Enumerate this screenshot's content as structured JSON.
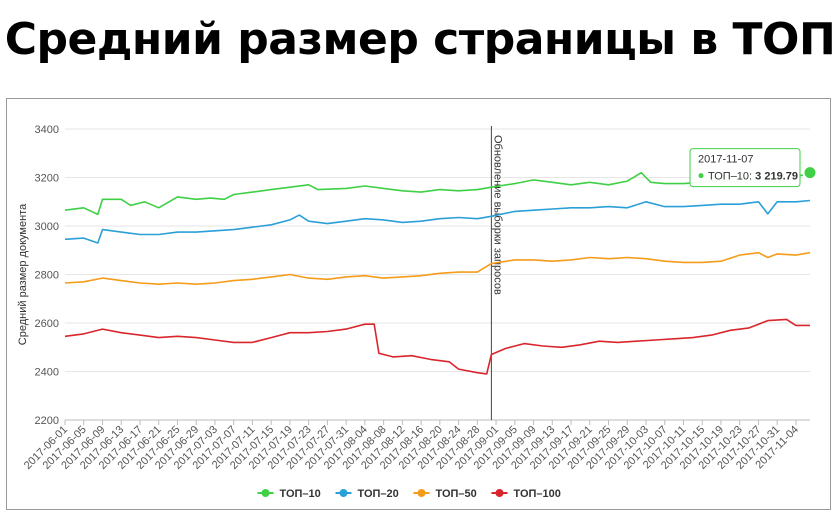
{
  "title": "Средний размер страницы в ТОП",
  "chart_data": {
    "type": "line",
    "ylabel": "Средний размер документа",
    "ylim": [
      2200,
      3400
    ],
    "yticks": [
      2200,
      2400,
      2600,
      2800,
      3000,
      3200,
      3400
    ],
    "x_start": "2017-06-01",
    "x_end": "2017-11-07",
    "x_tick_labels": [
      "2017-06-01",
      "2017-06-05",
      "2017-06-09",
      "2017-06-13",
      "2017-06-17",
      "2017-06-21",
      "2017-06-25",
      "2017-06-29",
      "2017-07-03",
      "2017-07-07",
      "2017-07-11",
      "2017-07-15",
      "2017-07-19",
      "2017-07-23",
      "2017-07-27",
      "2017-07-31",
      "2017-08-04",
      "2017-08-08",
      "2017-08-12",
      "2017-08-16",
      "2017-08-20",
      "2017-08-24",
      "2017-08-28",
      "2017-09-01",
      "2017-09-05",
      "2017-09-09",
      "2017-09-13",
      "2017-09-17",
      "2017-09-21",
      "2017-09-25",
      "2017-09-29",
      "2017-10-03",
      "2017-10-07",
      "2017-10-11",
      "2017-10-15",
      "2017-10-19",
      "2017-10-23",
      "2017-10-27",
      "2017-10-31",
      "2017-11-04"
    ],
    "annotation": {
      "date": "2017-08-31",
      "label": "Обновление выборки запросов"
    },
    "tooltip": {
      "date": "2017-11-07",
      "series": "ТОП–10",
      "value": "3 219.79"
    },
    "legend_position": "bottom",
    "series": [
      {
        "name": "ТОП–10",
        "color": "#3fd046",
        "points": [
          [
            "2017-06-01",
            3065
          ],
          [
            "2017-06-05",
            3075
          ],
          [
            "2017-06-08",
            3048
          ],
          [
            "2017-06-09",
            3110
          ],
          [
            "2017-06-13",
            3110
          ],
          [
            "2017-06-15",
            3085
          ],
          [
            "2017-06-18",
            3100
          ],
          [
            "2017-06-21",
            3075
          ],
          [
            "2017-06-25",
            3120
          ],
          [
            "2017-06-29",
            3110
          ],
          [
            "2017-07-02",
            3115
          ],
          [
            "2017-07-05",
            3110
          ],
          [
            "2017-07-07",
            3130
          ],
          [
            "2017-07-11",
            3140
          ],
          [
            "2017-07-15",
            3150
          ],
          [
            "2017-07-19",
            3160
          ],
          [
            "2017-07-23",
            3170
          ],
          [
            "2017-07-25",
            3150
          ],
          [
            "2017-07-31",
            3155
          ],
          [
            "2017-08-04",
            3165
          ],
          [
            "2017-08-08",
            3155
          ],
          [
            "2017-08-12",
            3145
          ],
          [
            "2017-08-16",
            3140
          ],
          [
            "2017-08-20",
            3150
          ],
          [
            "2017-08-24",
            3145
          ],
          [
            "2017-08-28",
            3150
          ],
          [
            "2017-08-31",
            3160
          ],
          [
            "2017-09-05",
            3175
          ],
          [
            "2017-09-09",
            3190
          ],
          [
            "2017-09-13",
            3180
          ],
          [
            "2017-09-17",
            3170
          ],
          [
            "2017-09-21",
            3180
          ],
          [
            "2017-09-25",
            3170
          ],
          [
            "2017-09-29",
            3185
          ],
          [
            "2017-10-02",
            3220
          ],
          [
            "2017-10-04",
            3180
          ],
          [
            "2017-10-07",
            3175
          ],
          [
            "2017-10-11",
            3175
          ],
          [
            "2017-10-15",
            3180
          ],
          [
            "2017-10-19",
            3190
          ],
          [
            "2017-10-23",
            3180
          ],
          [
            "2017-10-27",
            3195
          ],
          [
            "2017-10-31",
            3180
          ],
          [
            "2017-11-02",
            3190
          ],
          [
            "2017-11-07",
            3220
          ]
        ]
      },
      {
        "name": "ТОП–20",
        "color": "#2b9fd8",
        "points": [
          [
            "2017-06-01",
            2945
          ],
          [
            "2017-06-05",
            2950
          ],
          [
            "2017-06-08",
            2930
          ],
          [
            "2017-06-09",
            2985
          ],
          [
            "2017-06-13",
            2975
          ],
          [
            "2017-06-17",
            2965
          ],
          [
            "2017-06-21",
            2965
          ],
          [
            "2017-06-25",
            2975
          ],
          [
            "2017-06-29",
            2975
          ],
          [
            "2017-07-03",
            2980
          ],
          [
            "2017-07-07",
            2985
          ],
          [
            "2017-07-11",
            2995
          ],
          [
            "2017-07-15",
            3005
          ],
          [
            "2017-07-19",
            3025
          ],
          [
            "2017-07-21",
            3045
          ],
          [
            "2017-07-23",
            3020
          ],
          [
            "2017-07-27",
            3010
          ],
          [
            "2017-07-31",
            3020
          ],
          [
            "2017-08-04",
            3030
          ],
          [
            "2017-08-08",
            3025
          ],
          [
            "2017-08-12",
            3015
          ],
          [
            "2017-08-16",
            3020
          ],
          [
            "2017-08-20",
            3030
          ],
          [
            "2017-08-24",
            3035
          ],
          [
            "2017-08-28",
            3030
          ],
          [
            "2017-08-31",
            3040
          ],
          [
            "2017-09-05",
            3060
          ],
          [
            "2017-09-09",
            3065
          ],
          [
            "2017-09-13",
            3070
          ],
          [
            "2017-09-17",
            3075
          ],
          [
            "2017-09-21",
            3075
          ],
          [
            "2017-09-25",
            3080
          ],
          [
            "2017-09-29",
            3075
          ],
          [
            "2017-10-03",
            3100
          ],
          [
            "2017-10-07",
            3080
          ],
          [
            "2017-10-11",
            3080
          ],
          [
            "2017-10-15",
            3085
          ],
          [
            "2017-10-19",
            3090
          ],
          [
            "2017-10-23",
            3090
          ],
          [
            "2017-10-27",
            3100
          ],
          [
            "2017-10-29",
            3050
          ],
          [
            "2017-10-31",
            3100
          ],
          [
            "2017-11-04",
            3100
          ],
          [
            "2017-11-07",
            3105
          ]
        ]
      },
      {
        "name": "ТОП–50",
        "color": "#f59c1a",
        "points": [
          [
            "2017-06-01",
            2765
          ],
          [
            "2017-06-05",
            2770
          ],
          [
            "2017-06-09",
            2785
          ],
          [
            "2017-06-13",
            2775
          ],
          [
            "2017-06-17",
            2765
          ],
          [
            "2017-06-21",
            2760
          ],
          [
            "2017-06-25",
            2765
          ],
          [
            "2017-06-29",
            2760
          ],
          [
            "2017-07-03",
            2765
          ],
          [
            "2017-07-07",
            2775
          ],
          [
            "2017-07-11",
            2780
          ],
          [
            "2017-07-15",
            2790
          ],
          [
            "2017-07-19",
            2800
          ],
          [
            "2017-07-23",
            2785
          ],
          [
            "2017-07-27",
            2780
          ],
          [
            "2017-07-31",
            2790
          ],
          [
            "2017-08-04",
            2795
          ],
          [
            "2017-08-08",
            2785
          ],
          [
            "2017-08-12",
            2790
          ],
          [
            "2017-08-16",
            2795
          ],
          [
            "2017-08-20",
            2805
          ],
          [
            "2017-08-24",
            2810
          ],
          [
            "2017-08-28",
            2810
          ],
          [
            "2017-08-31",
            2845
          ],
          [
            "2017-09-05",
            2860
          ],
          [
            "2017-09-09",
            2860
          ],
          [
            "2017-09-13",
            2855
          ],
          [
            "2017-09-17",
            2860
          ],
          [
            "2017-09-21",
            2870
          ],
          [
            "2017-09-25",
            2865
          ],
          [
            "2017-09-29",
            2870
          ],
          [
            "2017-10-03",
            2865
          ],
          [
            "2017-10-07",
            2855
          ],
          [
            "2017-10-11",
            2850
          ],
          [
            "2017-10-15",
            2850
          ],
          [
            "2017-10-19",
            2855
          ],
          [
            "2017-10-23",
            2880
          ],
          [
            "2017-10-27",
            2890
          ],
          [
            "2017-10-29",
            2870
          ],
          [
            "2017-10-31",
            2885
          ],
          [
            "2017-11-04",
            2880
          ],
          [
            "2017-11-07",
            2890
          ]
        ]
      },
      {
        "name": "ТОП–100",
        "color": "#d9262c",
        "points": [
          [
            "2017-06-01",
            2545
          ],
          [
            "2017-06-05",
            2555
          ],
          [
            "2017-06-09",
            2575
          ],
          [
            "2017-06-13",
            2560
          ],
          [
            "2017-06-17",
            2550
          ],
          [
            "2017-06-21",
            2540
          ],
          [
            "2017-06-25",
            2545
          ],
          [
            "2017-06-29",
            2540
          ],
          [
            "2017-07-03",
            2530
          ],
          [
            "2017-07-07",
            2520
          ],
          [
            "2017-07-11",
            2520
          ],
          [
            "2017-07-15",
            2540
          ],
          [
            "2017-07-19",
            2560
          ],
          [
            "2017-07-23",
            2560
          ],
          [
            "2017-07-27",
            2565
          ],
          [
            "2017-07-31",
            2575
          ],
          [
            "2017-08-04",
            2595
          ],
          [
            "2017-08-06",
            2595
          ],
          [
            "2017-08-07",
            2475
          ],
          [
            "2017-08-10",
            2460
          ],
          [
            "2017-08-14",
            2465
          ],
          [
            "2017-08-18",
            2450
          ],
          [
            "2017-08-22",
            2440
          ],
          [
            "2017-08-24",
            2410
          ],
          [
            "2017-08-28",
            2395
          ],
          [
            "2017-08-30",
            2390
          ],
          [
            "2017-08-31",
            2470
          ],
          [
            "2017-09-03",
            2495
          ],
          [
            "2017-09-07",
            2515
          ],
          [
            "2017-09-11",
            2505
          ],
          [
            "2017-09-15",
            2500
          ],
          [
            "2017-09-19",
            2510
          ],
          [
            "2017-09-23",
            2525
          ],
          [
            "2017-09-27",
            2520
          ],
          [
            "2017-10-01",
            2525
          ],
          [
            "2017-10-05",
            2530
          ],
          [
            "2017-10-09",
            2535
          ],
          [
            "2017-10-13",
            2540
          ],
          [
            "2017-10-17",
            2550
          ],
          [
            "2017-10-21",
            2570
          ],
          [
            "2017-10-25",
            2580
          ],
          [
            "2017-10-29",
            2610
          ],
          [
            "2017-11-02",
            2615
          ],
          [
            "2017-11-04",
            2590
          ],
          [
            "2017-11-07",
            2590
          ]
        ]
      }
    ]
  }
}
